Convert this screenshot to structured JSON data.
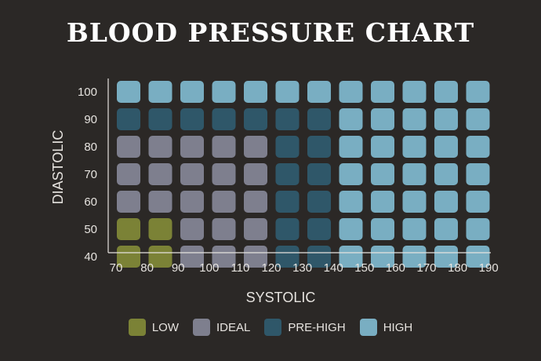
{
  "chart_data": {
    "type": "heatmap",
    "title": "BLOOD PRESSURE CHART",
    "xlabel": "SYSTOLIC",
    "ylabel": "DIASTOLIC",
    "x": [
      "70",
      "80",
      "90",
      "100",
      "110",
      "120",
      "130",
      "140",
      "150",
      "160",
      "170",
      "180",
      "190"
    ],
    "y": [
      "100",
      "90",
      "80",
      "70",
      "60",
      "50",
      "40"
    ],
    "categories": {
      "low": {
        "label": "LOW",
        "color": "#7b8236"
      },
      "ideal": {
        "label": "IDEAL",
        "color": "#7e7f8e"
      },
      "prehigh": {
        "label": "PRE-HIGH",
        "color": "#2f5769"
      },
      "high": {
        "label": "HIGH",
        "color": "#79aec2"
      }
    },
    "cells": [
      [
        "high",
        "high",
        "high",
        "high",
        "high",
        "high",
        "high",
        "high",
        "high",
        "high",
        "high",
        "high"
      ],
      [
        "prehigh",
        "prehigh",
        "prehigh",
        "prehigh",
        "prehigh",
        "prehigh",
        "prehigh",
        "high",
        "high",
        "high",
        "high",
        "high"
      ],
      [
        "ideal",
        "ideal",
        "ideal",
        "ideal",
        "ideal",
        "prehigh",
        "prehigh",
        "high",
        "high",
        "high",
        "high",
        "high"
      ],
      [
        "ideal",
        "ideal",
        "ideal",
        "ideal",
        "ideal",
        "prehigh",
        "prehigh",
        "high",
        "high",
        "high",
        "high",
        "high"
      ],
      [
        "ideal",
        "ideal",
        "ideal",
        "ideal",
        "ideal",
        "prehigh",
        "prehigh",
        "high",
        "high",
        "high",
        "high",
        "high"
      ],
      [
        "low",
        "low",
        "ideal",
        "ideal",
        "ideal",
        "prehigh",
        "prehigh",
        "high",
        "high",
        "high",
        "high",
        "high"
      ],
      [
        "low",
        "low",
        "ideal",
        "ideal",
        "ideal",
        "prehigh",
        "prehigh",
        "high",
        "high",
        "high",
        "high",
        "high"
      ]
    ],
    "legend": [
      "low",
      "ideal",
      "prehigh",
      "high"
    ],
    "legend_position": "bottom"
  }
}
